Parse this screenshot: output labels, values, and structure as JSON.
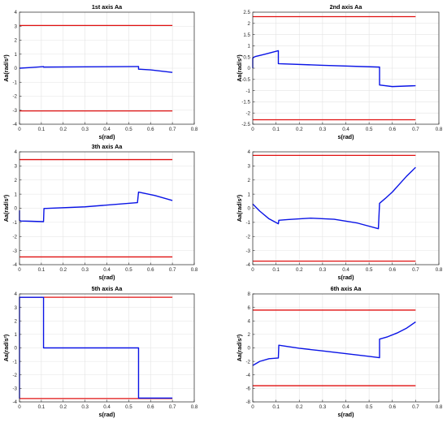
{
  "colors": {
    "signal": "#0a14e6",
    "limit": "#e01010",
    "grid": "#e3e3e3",
    "axis": "#262626"
  },
  "chart_data": [
    {
      "type": "line",
      "title": "1st axis Aa",
      "xlabel": "s(rad)",
      "ylabel": "Aa(rad/s²)",
      "xlim": [
        0,
        0.8
      ],
      "ylim": [
        -4,
        4
      ],
      "xticks": [
        "0",
        "0.1",
        "0.2",
        "0.3",
        "0.4",
        "0.5",
        "0.6",
        "0.7",
        "0.8"
      ],
      "yticks": [
        "-4",
        "-3",
        "-2",
        "-1",
        "0",
        "1",
        "2",
        "3",
        "4"
      ],
      "grid": true,
      "limits": [
        3.05,
        -3.05
      ],
      "series": [
        {
          "x": [
            0,
            0.05,
            0.11,
            0.11,
            0.3,
            0.54,
            0.545,
            0.545,
            0.6,
            0.7
          ],
          "y": [
            0.0,
            0.05,
            0.11,
            0.08,
            0.1,
            0.12,
            0.12,
            -0.07,
            -0.12,
            -0.3
          ]
        }
      ]
    },
    {
      "type": "line",
      "title": "2nd axis Aa",
      "xlabel": "s(rad)",
      "ylabel": "Aa(rad/s²)",
      "xlim": [
        0,
        0.8
      ],
      "ylim": [
        -2.5,
        2.5
      ],
      "xticks": [
        "0",
        "0.1",
        "0.2",
        "0.3",
        "0.4",
        "0.5",
        "0.6",
        "0.7",
        "0.8"
      ],
      "yticks": [
        "-2.5",
        "-2",
        "-1.5",
        "-1",
        "-0.5",
        "0",
        "0.5",
        "1",
        "1.5",
        "2",
        "2.5"
      ],
      "grid": true,
      "limits": [
        2.3,
        -2.3
      ],
      "series": [
        {
          "x": [
            0,
            0,
            0.01,
            0.05,
            0.11,
            0.11,
            0.3,
            0.545,
            0.545,
            0.6,
            0.7
          ],
          "y": [
            0.0,
            0.45,
            0.52,
            0.62,
            0.78,
            0.2,
            0.13,
            0.05,
            -0.75,
            -0.82,
            -0.78
          ]
        }
      ]
    },
    {
      "type": "line",
      "title": "3th axis Aa",
      "xlabel": "s(rad)",
      "ylabel": "Aa(rad/s²)",
      "xlim": [
        0,
        0.8
      ],
      "ylim": [
        -4,
        4
      ],
      "xticks": [
        "0",
        "0.1",
        "0.2",
        "0.3",
        "0.4",
        "0.5",
        "0.6",
        "0.7",
        "0.8"
      ],
      "yticks": [
        "-4",
        "-3",
        "-2",
        "-1",
        "0",
        "1",
        "2",
        "3",
        "4"
      ],
      "grid": true,
      "limits": [
        3.45,
        -3.45
      ],
      "series": [
        {
          "x": [
            0,
            0,
            0.005,
            0.05,
            0.11,
            0.112,
            0.3,
            0.54,
            0.545,
            0.56,
            0.62,
            0.7
          ],
          "y": [
            -0.15,
            -0.85,
            -0.9,
            -0.92,
            -0.95,
            -0.02,
            0.1,
            0.4,
            1.15,
            1.1,
            0.9,
            0.55
          ]
        }
      ]
    },
    {
      "type": "line",
      "title": "",
      "xlabel": "s(rad)",
      "ylabel": "Aa(rad/s²)",
      "xlim": [
        0,
        0.8
      ],
      "ylim": [
        -4,
        4
      ],
      "xticks": [
        "0",
        "0.1",
        "0.2",
        "0.3",
        "0.4",
        "0.5",
        "0.6",
        "0.7",
        "0.8"
      ],
      "yticks": [
        "-4",
        "-3",
        "-2",
        "-1",
        "0",
        "1",
        "2",
        "3",
        "4"
      ],
      "grid": true,
      "limits": [
        3.75,
        -3.75
      ],
      "series": [
        {
          "x": [
            0,
            0.03,
            0.07,
            0.11,
            0.112,
            0.15,
            0.25,
            0.35,
            0.45,
            0.54,
            0.545,
            0.57,
            0.6,
            0.63,
            0.66,
            0.7
          ],
          "y": [
            0.3,
            -0.2,
            -0.75,
            -1.1,
            -0.85,
            -0.8,
            -0.7,
            -0.78,
            -1.05,
            -1.45,
            0.35,
            0.7,
            1.15,
            1.7,
            2.25,
            2.9
          ]
        }
      ]
    },
    {
      "type": "line",
      "title": "5th axis Aa",
      "xlabel": "s(rad)",
      "ylabel": "Aa(rad/s²)",
      "xlim": [
        0,
        0.8
      ],
      "ylim": [
        -4,
        4
      ],
      "xticks": [
        "0",
        "0.1",
        "0.2",
        "0.3",
        "0.4",
        "0.5",
        "0.6",
        "0.7",
        "0.8"
      ],
      "yticks": [
        "-4",
        "-3",
        "-2",
        "-1",
        "0",
        "1",
        "2",
        "3",
        "4"
      ],
      "grid": true,
      "limits": [
        3.75,
        -3.75
      ],
      "series": [
        {
          "x": [
            0,
            0,
            0.11,
            0.11,
            0.545,
            0.545,
            0.7
          ],
          "y": [
            -3.75,
            3.75,
            3.75,
            0.0,
            0.0,
            -3.72,
            -3.72
          ]
        }
      ]
    },
    {
      "type": "line",
      "title": "6th axis Aa",
      "xlabel": "s(rad)",
      "ylabel": "Aa(rad/s²)",
      "xlim": [
        0,
        0.8
      ],
      "ylim": [
        -8,
        8
      ],
      "xticks": [
        "0",
        "0.1",
        "0.2",
        "0.3",
        "0.4",
        "0.5",
        "0.6",
        "0.7",
        "0.8"
      ],
      "yticks": [
        "-8",
        "-6",
        "-4",
        "-2",
        "0",
        "2",
        "4",
        "6",
        "8"
      ],
      "grid": true,
      "limits": [
        5.6,
        -5.6
      ],
      "series": [
        {
          "x": [
            0,
            0.03,
            0.07,
            0.11,
            0.112,
            0.2,
            0.3,
            0.4,
            0.5,
            0.545,
            0.545,
            0.58,
            0.62,
            0.66,
            0.7
          ],
          "y": [
            -2.6,
            -2.0,
            -1.6,
            -1.5,
            0.4,
            -0.05,
            -0.45,
            -0.85,
            -1.25,
            -1.45,
            1.3,
            1.65,
            2.2,
            2.9,
            3.85
          ]
        }
      ]
    }
  ]
}
